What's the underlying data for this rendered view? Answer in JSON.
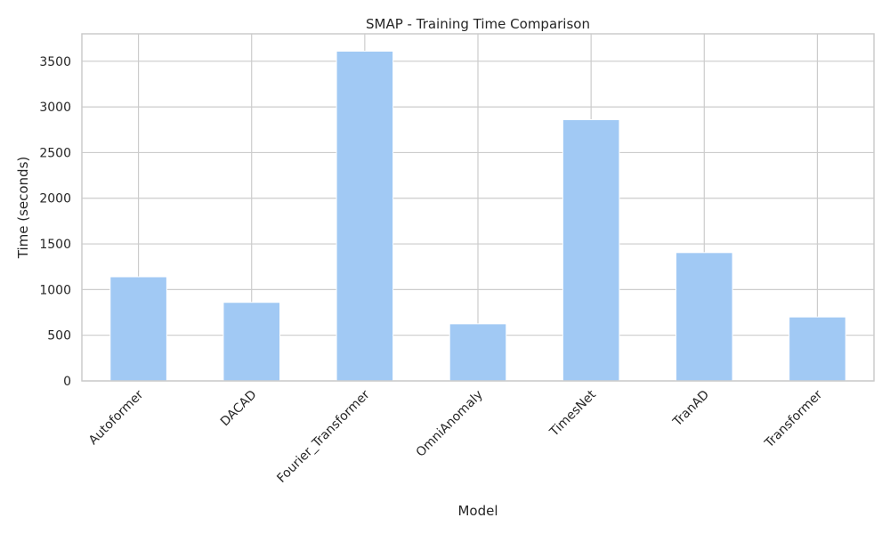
{
  "chart_data": {
    "type": "bar",
    "title": "SMAP - Training Time Comparison",
    "xlabel": "Model",
    "ylabel": "Time (seconds)",
    "categories": [
      "Autoformer",
      "DACAD",
      "Fourier_Transformer",
      "OmniAnomaly",
      "TimesNet",
      "TranAD",
      "Transformer"
    ],
    "values": [
      1140,
      860,
      3610,
      625,
      2860,
      1405,
      700
    ],
    "ylim": [
      0,
      3800
    ],
    "yticks": [
      0,
      500,
      1000,
      1500,
      2000,
      2500,
      3000,
      3500
    ],
    "grid": true,
    "legend": "none",
    "bar_color": "#a1c9f4",
    "grid_color": "#cccccc",
    "axes_color": "#cccccc"
  }
}
